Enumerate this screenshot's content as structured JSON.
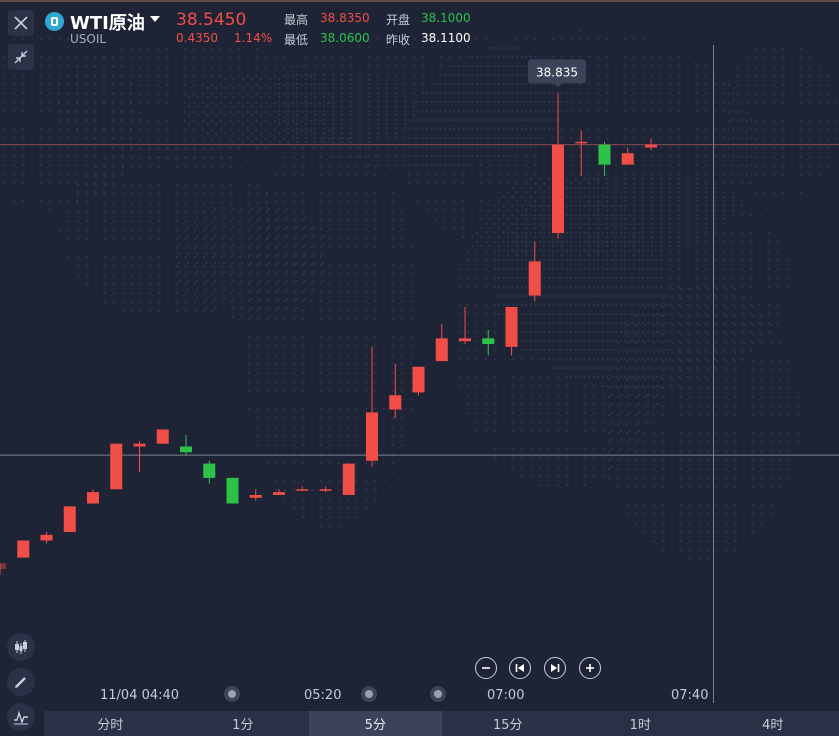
{
  "symbol": {
    "name": "WTI原油",
    "code": "USOIL"
  },
  "quote": {
    "price": "38.5450",
    "change": "0.4350",
    "change_pct": "1.14%"
  },
  "stats": {
    "high_label": "最高",
    "high": "38.8350",
    "open_label": "开盘",
    "open": "38.1000",
    "low_label": "最低",
    "low": "38.0600",
    "prev_close_label": "昨收",
    "prev_close": "38.1100"
  },
  "tooltip": {
    "value": "38.835"
  },
  "time_axis": [
    "11/04 04:40",
    "05:20",
    "07:00",
    "07:40"
  ],
  "tabs": [
    {
      "label": "分时",
      "active": false
    },
    {
      "label": "1分",
      "active": false
    },
    {
      "label": "5分",
      "active": true
    },
    {
      "label": "15分",
      "active": false
    },
    {
      "label": "1时",
      "active": false
    },
    {
      "label": "4时",
      "active": false
    }
  ],
  "colors": {
    "up": "#f04e47",
    "down": "#2ec24a",
    "background": "#1e2436"
  },
  "chart_data": {
    "type": "candlestick",
    "interval": "5分",
    "y_range": [
      37.77,
      38.92
    ],
    "candles": [
      {
        "o": 38.0,
        "h": 38.01,
        "l": 37.99,
        "c": 38.01
      },
      {
        "o": 38.02,
        "h": 38.05,
        "l": 38.02,
        "c": 38.05
      },
      {
        "o": 38.05,
        "h": 38.065,
        "l": 38.045,
        "c": 38.06
      },
      {
        "o": 38.065,
        "h": 38.11,
        "l": 38.065,
        "c": 38.11
      },
      {
        "o": 38.115,
        "h": 38.14,
        "l": 38.115,
        "c": 38.135
      },
      {
        "o": 38.14,
        "h": 38.22,
        "l": 38.14,
        "c": 38.22
      },
      {
        "o": 38.215,
        "h": 38.225,
        "l": 38.17,
        "c": 38.22
      },
      {
        "o": 38.22,
        "h": 38.245,
        "l": 38.22,
        "c": 38.245
      },
      {
        "o": 38.215,
        "h": 38.235,
        "l": 38.2,
        "c": 38.205
      },
      {
        "o": 38.185,
        "h": 38.19,
        "l": 38.15,
        "c": 38.16
      },
      {
        "o": 38.16,
        "h": 38.16,
        "l": 38.115,
        "c": 38.115
      },
      {
        "o": 38.125,
        "h": 38.14,
        "l": 38.12,
        "c": 38.13
      },
      {
        "o": 38.13,
        "h": 38.14,
        "l": 38.13,
        "c": 38.135
      },
      {
        "o": 38.14,
        "h": 38.145,
        "l": 38.14,
        "c": 38.14
      },
      {
        "o": 38.14,
        "h": 38.145,
        "l": 38.135,
        "c": 38.14
      },
      {
        "o": 38.13,
        "h": 38.185,
        "l": 38.13,
        "c": 38.185
      },
      {
        "o": 38.19,
        "h": 38.39,
        "l": 38.18,
        "c": 38.275
      },
      {
        "o": 38.28,
        "h": 38.36,
        "l": 38.265,
        "c": 38.305
      },
      {
        "o": 38.31,
        "h": 38.355,
        "l": 38.305,
        "c": 38.355
      },
      {
        "o": 38.365,
        "h": 38.43,
        "l": 38.365,
        "c": 38.405
      },
      {
        "o": 38.4,
        "h": 38.46,
        "l": 38.395,
        "c": 38.405
      },
      {
        "o": 38.405,
        "h": 38.42,
        "l": 38.375,
        "c": 38.395
      },
      {
        "o": 38.39,
        "h": 38.46,
        "l": 38.375,
        "c": 38.46
      },
      {
        "o": 38.48,
        "h": 38.575,
        "l": 38.47,
        "c": 38.54
      },
      {
        "o": 38.59,
        "h": 38.835,
        "l": 38.58,
        "c": 38.745
      },
      {
        "o": 38.75,
        "h": 38.77,
        "l": 38.69,
        "c": 38.75
      },
      {
        "o": 38.745,
        "h": 38.75,
        "l": 38.69,
        "c": 38.71
      },
      {
        "o": 38.71,
        "h": 38.74,
        "l": 38.71,
        "c": 38.73
      },
      {
        "o": 38.74,
        "h": 38.755,
        "l": 38.735,
        "c": 38.745
      }
    ],
    "crosshair": {
      "price_line": 38.745,
      "level_line": 38.2
    }
  }
}
